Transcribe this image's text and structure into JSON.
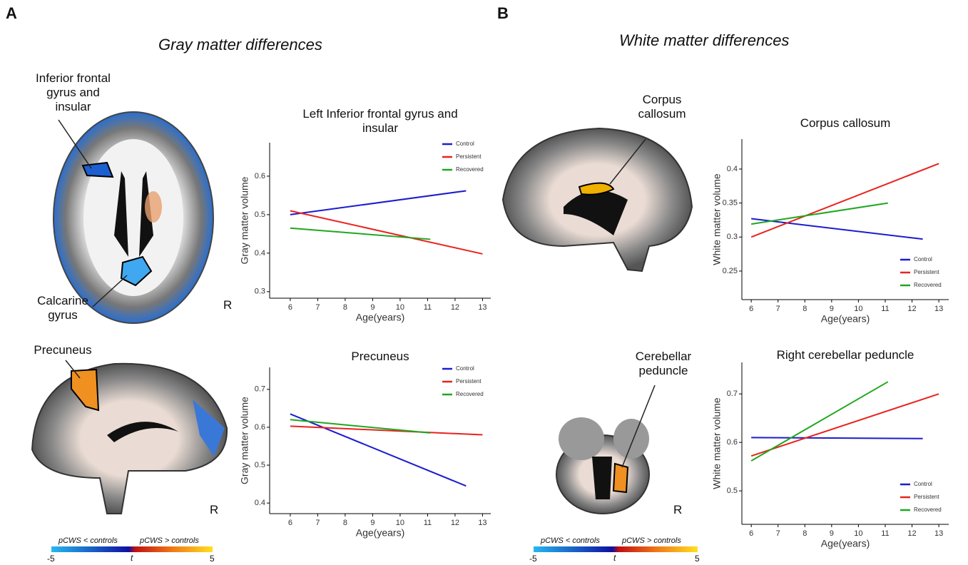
{
  "figure": {
    "panel_a": "A",
    "panel_b": "B",
    "gray_title": "Gray matter differences",
    "white_title": "White matter differences",
    "labels": {
      "ifg": "Inferior frontal gyrus and insular",
      "calcarine": "Calcarine gyrus",
      "precuneus": "Precuneus",
      "corpus": "Corpus callosum",
      "cerebellar": "Cerebellar peduncle"
    },
    "r_marks": [
      "R",
      "R",
      "R"
    ],
    "colorbar": {
      "low": "pCWS < controls",
      "high": "pCWS > controls",
      "min": "-5",
      "mid": "t",
      "max": "5"
    }
  },
  "chart_data": [
    {
      "type": "line",
      "title": "Left Inferior frontal gyrus and insular",
      "x_label": "Age(years)",
      "y_label": "Gray matter volume",
      "xlim": [
        5.25,
        13.3
      ],
      "xticks": [
        6,
        7,
        8,
        9,
        10,
        11,
        12,
        13
      ],
      "ylim": [
        0.283,
        0.687
      ],
      "yticks": [
        0.3,
        0.4,
        0.5,
        0.6
      ],
      "grid": false,
      "legend": "top-right",
      "series": [
        {
          "name": "Control",
          "color": "#1c1cd0",
          "x": [
            6,
            12.4
          ],
          "values": [
            0.5,
            0.562
          ]
        },
        {
          "name": "Persistent",
          "color": "#e8231f",
          "x": [
            6,
            13
          ],
          "values": [
            0.51,
            0.398
          ]
        },
        {
          "name": "Recovered",
          "color": "#1fa81f",
          "x": [
            6,
            11.1
          ],
          "values": [
            0.465,
            0.436
          ]
        }
      ]
    },
    {
      "type": "line",
      "title": "Precuneus",
      "x_label": "Age(years)",
      "y_label": "Gray matter volume",
      "xlim": [
        5.25,
        13.3
      ],
      "xticks": [
        6,
        7,
        8,
        9,
        10,
        11,
        12,
        13
      ],
      "ylim": [
        0.372,
        0.758
      ],
      "yticks": [
        0.4,
        0.5,
        0.6,
        0.7
      ],
      "grid": false,
      "legend": "top-right",
      "series": [
        {
          "name": "Control",
          "color": "#1c1cd0",
          "x": [
            6,
            12.4
          ],
          "values": [
            0.635,
            0.445
          ]
        },
        {
          "name": "Persistent",
          "color": "#e8231f",
          "x": [
            6,
            13
          ],
          "values": [
            0.603,
            0.58
          ]
        },
        {
          "name": "Recovered",
          "color": "#1fa81f",
          "x": [
            6,
            11.1
          ],
          "values": [
            0.62,
            0.585
          ]
        }
      ]
    },
    {
      "type": "line",
      "title": "Corpus callosum",
      "x_label": "Age(years)",
      "y_label": "White matter volume",
      "xlim": [
        5.65,
        13.37
      ],
      "xticks": [
        6,
        7,
        8,
        9,
        10,
        11,
        12,
        13
      ],
      "ylim": [
        0.208,
        0.444
      ],
      "yticks": [
        0.25,
        0.3,
        0.35,
        0.4
      ],
      "grid": false,
      "legend": "bottom-right",
      "series": [
        {
          "name": "Control",
          "color": "#1c1cd0",
          "x": [
            6,
            12.4
          ],
          "values": [
            0.327,
            0.297
          ]
        },
        {
          "name": "Persistent",
          "color": "#e8231f",
          "x": [
            6,
            13
          ],
          "values": [
            0.3,
            0.408
          ]
        },
        {
          "name": "Recovered",
          "color": "#1fa81f",
          "x": [
            6,
            11.1
          ],
          "values": [
            0.319,
            0.35
          ]
        }
      ]
    },
    {
      "type": "line",
      "title": "Right cerebellar peduncle",
      "x_label": "Age(years)",
      "y_label": "White matter volume",
      "xlim": [
        5.65,
        13.37
      ],
      "xticks": [
        6,
        7,
        8,
        9,
        10,
        11,
        12,
        13
      ],
      "ylim": [
        0.431,
        0.765
      ],
      "yticks": [
        0.5,
        0.6,
        0.7
      ],
      "grid": false,
      "legend": "bottom-right",
      "series": [
        {
          "name": "Control",
          "color": "#1c1cd0",
          "x": [
            6,
            12.4
          ],
          "values": [
            0.61,
            0.608
          ]
        },
        {
          "name": "Persistent",
          "color": "#e8231f",
          "x": [
            6,
            13
          ],
          "values": [
            0.572,
            0.7
          ]
        },
        {
          "name": "Recovered",
          "color": "#1fa81f",
          "x": [
            6,
            11.1
          ],
          "values": [
            0.562,
            0.725
          ]
        }
      ]
    }
  ]
}
